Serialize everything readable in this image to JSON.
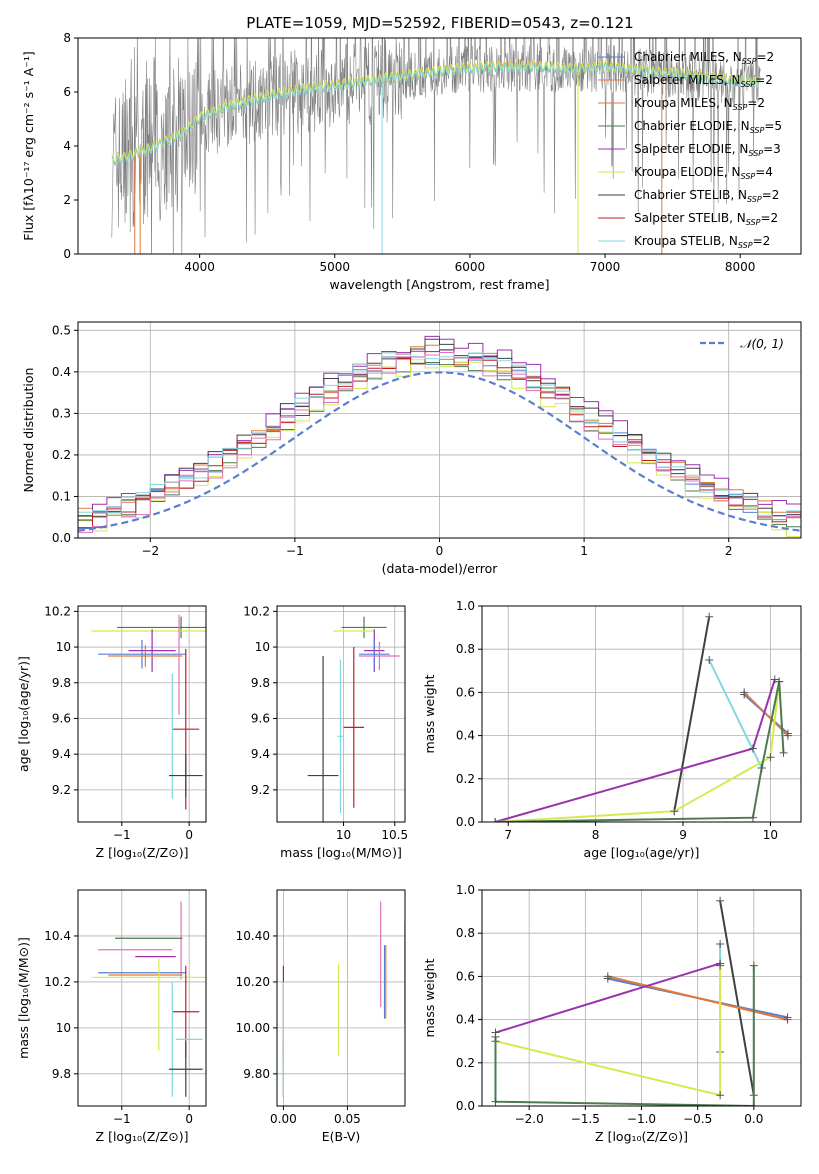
{
  "title": "PLATE=1059, MJD=52592, FIBERID=0543, z=0.121",
  "colors": {
    "blue": "#5a7fd0",
    "orange": "#e07a3a",
    "green": "#4e7a4e",
    "purple": "#9b30b0",
    "yellow": "#d6ea50",
    "black": "#404040",
    "red": "#c02020",
    "cyan": "#80d8e0",
    "grey": "#808080",
    "pink": "#e070c0",
    "olive": "#4a8a5a"
  },
  "legend_spectrum": [
    {
      "label": "Chabrier MILES, N",
      "sub": "SSP",
      "suffix": "=2",
      "color": "#5a7fd0"
    },
    {
      "label": "Salpeter MILES, N",
      "sub": "SSP",
      "suffix": "=2",
      "color": "#e07a3a"
    },
    {
      "label": "Kroupa MILES, N",
      "sub": "SSP",
      "suffix": "=2",
      "color": "#e07a3a"
    },
    {
      "label": "Chabrier ELODIE, N",
      "sub": "SSP",
      "suffix": "=5",
      "color": "#4e7a4e"
    },
    {
      "label": "Salpeter ELODIE, N",
      "sub": "SSP",
      "suffix": "=3",
      "color": "#9b30b0"
    },
    {
      "label": "Kroupa ELODIE, N",
      "sub": "SSP",
      "suffix": "=4",
      "color": "#d6ea50"
    },
    {
      "label": "Chabrier STELIB, N",
      "sub": "SSP",
      "suffix": "=2",
      "color": "#404040"
    },
    {
      "label": "Salpeter STELIB, N",
      "sub": "SSP",
      "suffix": "=2",
      "color": "#c02020"
    },
    {
      "label": "Kroupa STELIB, N",
      "sub": "SSP",
      "suffix": "=2",
      "color": "#80d8e0"
    }
  ],
  "chart_data": [
    {
      "id": "spectrum",
      "type": "line",
      "xlabel": "wavelength [Angstrom, rest frame]",
      "ylabel": "Flux [fλ10⁻¹⁷ erg cm⁻² s⁻¹ A⁻¹]",
      "xlim": [
        3100,
        8450
      ],
      "ylim": [
        0,
        8
      ],
      "xticks": [
        4000,
        5000,
        6000,
        7000,
        8000
      ],
      "yticks": [
        0,
        2,
        4,
        6,
        8
      ],
      "continuum": {
        "x": [
          3350,
          3500,
          3700,
          3900,
          4000,
          4200,
          4500,
          4800,
          5000,
          5300,
          5600,
          5900,
          6200,
          6500,
          6800,
          7000,
          7300,
          7600,
          7900,
          8150
        ],
        "y": [
          3.4,
          3.6,
          4.0,
          4.5,
          5.0,
          5.4,
          5.8,
          6.1,
          6.2,
          6.4,
          6.6,
          6.8,
          6.9,
          6.9,
          6.8,
          6.9,
          6.7,
          6.6,
          6.4,
          6.3
        ]
      }
    },
    {
      "id": "residuals",
      "type": "histogram",
      "xlabel": "(data-model)/error",
      "ylabel": "Normed distribution",
      "xlim": [
        -2.5,
        2.5
      ],
      "ylim": [
        0,
        0.52
      ],
      "xticks": [
        -2,
        -1,
        0,
        1,
        2
      ],
      "yticks": [
        0.0,
        0.1,
        0.2,
        0.3,
        0.4,
        0.5
      ],
      "legend": "𝒩(0, 1)",
      "bin_width": 0.1,
      "series_hist": [
        {
          "color": "#5a7fd0",
          "offset": 0.0
        },
        {
          "color": "#e07a3a",
          "offset": 0.01
        },
        {
          "color": "#4e7a4e",
          "offset": -0.01
        },
        {
          "color": "#9b30b0",
          "offset": 0.03
        },
        {
          "color": "#d6ea50",
          "offset": -0.02
        },
        {
          "color": "#404040",
          "offset": 0.02
        },
        {
          "color": "#c02020",
          "offset": 0.0
        },
        {
          "color": "#80d8e0",
          "offset": 0.01
        },
        {
          "color": "#e070c0",
          "offset": -0.01
        }
      ]
    },
    {
      "id": "age-vs-Z",
      "type": "errorbar",
      "xlabel": "Z [log₁₀(Z/Z⊙)]",
      "ylabel": "age  [log₁₀(age/yr)]",
      "xlim": [
        -1.65,
        0.25
      ],
      "ylim": [
        9.02,
        10.23
      ],
      "xticks": [
        -1,
        0
      ],
      "yticks": [
        9.2,
        9.4,
        9.6,
        9.8,
        10.0,
        10.2
      ],
      "points": [
        {
          "x": -0.12,
          "xerr": 0.95,
          "y": 10.11,
          "yerr": 0.06,
          "color": "#4e7a4e"
        },
        {
          "x": -0.6,
          "xerr": 0.85,
          "y": 10.09,
          "yerr": 0.0,
          "color": "#d6ea50"
        },
        {
          "x": -0.55,
          "xerr": 0.35,
          "y": 9.98,
          "yerr": 0.12,
          "color": "#9b30b0"
        },
        {
          "x": -0.7,
          "xerr": 0.65,
          "y": 9.96,
          "yerr": 0.08,
          "color": "#5a7fd0"
        },
        {
          "x": -0.65,
          "xerr": 0.55,
          "y": 9.95,
          "yerr": 0.06,
          "color": "#e07a3a"
        },
        {
          "x": -0.15,
          "xerr": 0.0,
          "y": 9.9,
          "yerr": 0.28,
          "color": "#e070c0"
        },
        {
          "x": -0.05,
          "xerr": 0.2,
          "y": 9.54,
          "yerr": 0.45,
          "color": "#c02020"
        },
        {
          "x": -0.25,
          "xerr": 0.0,
          "y": 9.5,
          "yerr": 0.35,
          "color": "#80d8e0"
        },
        {
          "x": -0.05,
          "xerr": 0.25,
          "y": 9.28,
          "yerr": 0.12,
          "color": "#404040"
        }
      ]
    },
    {
      "id": "age-vs-mass",
      "type": "errorbar",
      "xlabel": "mass [log₁₀(M/M⊙)]",
      "xlim": [
        9.35,
        10.6
      ],
      "ylim": [
        9.02,
        10.23
      ],
      "xticks": [
        10.0,
        10.5
      ],
      "yticks": [
        9.2,
        9.4,
        9.6,
        9.8,
        10.0,
        10.2
      ],
      "points": [
        {
          "x": 10.2,
          "xerr": 0.22,
          "y": 10.11,
          "yerr": 0.06,
          "color": "#4e7a4e"
        },
        {
          "x": 10.1,
          "xerr": 0.2,
          "y": 10.09,
          "yerr": 0.0,
          "color": "#d6ea50"
        },
        {
          "x": 10.3,
          "xerr": 0.1,
          "y": 9.98,
          "yerr": 0.12,
          "color": "#9b30b0"
        },
        {
          "x": 10.3,
          "xerr": 0.15,
          "y": 9.96,
          "yerr": 0.08,
          "color": "#5a7fd0"
        },
        {
          "x": 10.35,
          "xerr": 0.2,
          "y": 9.95,
          "yerr": 0.08,
          "color": "#e070c0"
        },
        {
          "x": 10.1,
          "xerr": 0.1,
          "y": 9.55,
          "yerr": 0.45,
          "color": "#c02020"
        },
        {
          "x": 9.97,
          "xerr": 0.03,
          "y": 9.5,
          "yerr": 0.43,
          "color": "#80d8e0"
        },
        {
          "x": 9.8,
          "xerr": 0.15,
          "y": 9.28,
          "yerr": 0.67,
          "color": "#404040"
        }
      ]
    },
    {
      "id": "weight-vs-age",
      "type": "line",
      "xlabel": "age  [log₁₀(age/yr)]",
      "ylabel": "mass weight",
      "xlim": [
        6.7,
        10.35
      ],
      "ylim": [
        0,
        1
      ],
      "xticks": [
        7,
        8,
        9,
        10
      ],
      "yticks": [
        0.0,
        0.2,
        0.4,
        0.6,
        0.8,
        1.0
      ],
      "series": [
        {
          "color": "#404040",
          "x": [
            8.9,
            9.3
          ],
          "y": [
            0.05,
            0.95
          ]
        },
        {
          "color": "#80d8e0",
          "x": [
            9.3,
            9.9
          ],
          "y": [
            0.75,
            0.25
          ]
        },
        {
          "color": "#5a7fd0",
          "x": [
            9.7,
            10.2
          ],
          "y": [
            0.59,
            0.41
          ]
        },
        {
          "color": "#e07a3a",
          "x": [
            9.7,
            10.2
          ],
          "y": [
            0.6,
            0.4
          ]
        },
        {
          "color": "#9b30b0",
          "x": [
            6.85,
            9.8,
            10.05
          ],
          "y": [
            0.0,
            0.34,
            0.66
          ]
        },
        {
          "color": "#d6ea50",
          "x": [
            6.85,
            8.9,
            10.0,
            10.1
          ],
          "y": [
            0.0,
            0.05,
            0.3,
            0.65
          ]
        },
        {
          "color": "#4e7a4e",
          "x": [
            6.85,
            9.8,
            9.9,
            10.1,
            10.15
          ],
          "y": [
            0.0,
            0.02,
            0.25,
            0.65,
            0.32
          ]
        }
      ]
    },
    {
      "id": "mass-vs-Z",
      "type": "errorbar",
      "xlabel": "Z [log₁₀(Z/Z⊙)]",
      "ylabel": "mass [log₁₀(M/M⊙)]",
      "xlim": [
        -1.65,
        0.25
      ],
      "ylim": [
        9.66,
        10.6
      ],
      "xticks": [
        -1,
        0
      ],
      "yticks": [
        9.8,
        10.0,
        10.2,
        10.4
      ],
      "points": [
        {
          "x": -0.12,
          "xerr": 0.0,
          "y": 10.38,
          "yerr": 0.17,
          "color": "#e070c0"
        },
        {
          "x": -0.6,
          "xerr": 0.5,
          "y": 10.39,
          "yerr": 0.0,
          "color": "#4e7a4e"
        },
        {
          "x": -0.8,
          "xerr": 0.55,
          "y": 10.34,
          "yerr": 0.0,
          "color": "#e070c0"
        },
        {
          "x": -0.5,
          "xerr": 0.3,
          "y": 10.31,
          "yerr": 0.0,
          "color": "#9b30b0"
        },
        {
          "x": -0.7,
          "xerr": 0.65,
          "y": 10.24,
          "yerr": 0.0,
          "color": "#5a7fd0"
        },
        {
          "x": -0.65,
          "xerr": 0.55,
          "y": 10.23,
          "yerr": 0.0,
          "color": "#e07a3a"
        },
        {
          "x": -0.6,
          "xerr": 0.85,
          "y": 10.22,
          "yerr": 0.0,
          "color": "#d6ea50"
        },
        {
          "x": -0.45,
          "xerr": 0.0,
          "y": 10.1,
          "yerr": 0.2,
          "color": "#d6ea50"
        },
        {
          "x": -0.05,
          "xerr": 0.2,
          "y": 10.07,
          "yerr": 0.2,
          "color": "#c02020"
        },
        {
          "x": 0.0,
          "xerr": 0.2,
          "y": 9.95,
          "yerr": 0.0,
          "color": "#80d8e0"
        },
        {
          "x": -0.25,
          "xerr": 0.0,
          "y": 9.95,
          "yerr": 0.25,
          "color": "#80d8e0"
        },
        {
          "x": -0.05,
          "xerr": 0.25,
          "y": 9.82,
          "yerr": 0.12,
          "color": "#404040"
        }
      ]
    },
    {
      "id": "mass-vs-ebv",
      "type": "errorbar",
      "xlabel": "E(B-V)",
      "xlim": [
        -0.005,
        0.095
      ],
      "ylim": [
        9.66,
        10.6
      ],
      "xticks": [
        0.0,
        0.05
      ],
      "yticks": [
        9.8,
        10.0,
        10.2,
        10.4
      ],
      "points": [
        {
          "x": 0.0,
          "xerr": 0,
          "y": 10.07,
          "yerr": 0.2,
          "color": "#c02020"
        },
        {
          "x": 0.0,
          "xerr": 0,
          "y": 9.82,
          "yerr": 0.12,
          "color": "#404040"
        },
        {
          "x": 0.0,
          "xerr": 0,
          "y": 9.95,
          "yerr": 0.25,
          "color": "#80d8e0"
        },
        {
          "x": 0.043,
          "xerr": 0,
          "y": 10.08,
          "yerr": 0.2,
          "color": "#d6ea50"
        },
        {
          "x": 0.076,
          "xerr": 0,
          "y": 10.32,
          "yerr": 0.23,
          "color": "#e070c0"
        },
        {
          "x": 0.079,
          "xerr": 0,
          "y": 10.2,
          "yerr": 0.16,
          "color": "#5a7fd0"
        },
        {
          "x": 0.08,
          "xerr": 0,
          "y": 10.2,
          "yerr": 0.16,
          "color": "#e07a3a"
        },
        {
          "x": 0.095,
          "xerr": 0,
          "y": 10.24,
          "yerr": 0.22,
          "color": "#4e7a4e"
        }
      ]
    },
    {
      "id": "weight-vs-Z",
      "type": "line",
      "xlabel": "Z [log₁₀(Z/Z⊙)]",
      "ylabel": "mass weight",
      "xlim": [
        -2.42,
        0.42
      ],
      "ylim": [
        0,
        1
      ],
      "xticks": [
        -2.0,
        -1.5,
        -1.0,
        -0.5,
        0.0
      ],
      "yticks": [
        0.0,
        0.2,
        0.4,
        0.6,
        0.8,
        1.0
      ],
      "series": [
        {
          "color": "#404040",
          "x": [
            -0.3,
            0.0
          ],
          "y": [
            0.95,
            0.05
          ]
        },
        {
          "color": "#80d8e0",
          "x": [
            -0.3,
            -0.3
          ],
          "y": [
            0.75,
            0.25
          ]
        },
        {
          "color": "#5a7fd0",
          "x": [
            -1.3,
            0.3
          ],
          "y": [
            0.59,
            0.41
          ]
        },
        {
          "color": "#e07a3a",
          "x": [
            -1.3,
            0.3
          ],
          "y": [
            0.6,
            0.4
          ]
        },
        {
          "color": "#9b30b0",
          "x": [
            -2.3,
            -0.3
          ],
          "y": [
            0.34,
            0.66
          ]
        },
        {
          "color": "#d6ea50",
          "x": [
            -2.3,
            -0.3,
            -0.3
          ],
          "y": [
            0.3,
            0.05,
            0.65
          ]
        },
        {
          "color": "#4e7a4e",
          "x": [
            -2.3,
            -2.3,
            0.0,
            0.0
          ],
          "y": [
            0.32,
            0.02,
            0.0,
            0.65
          ]
        }
      ]
    }
  ]
}
